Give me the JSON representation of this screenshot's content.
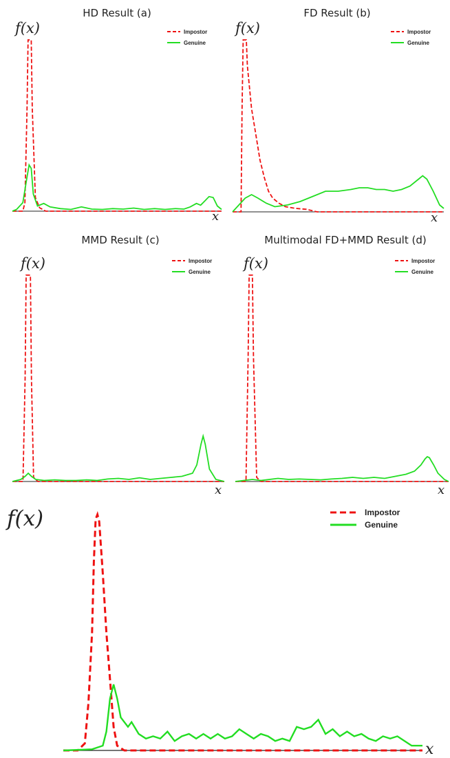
{
  "colors": {
    "impostor": "#ee1111",
    "genuine": "#22dd22",
    "axis": "#222222"
  },
  "legend": {
    "impostor": "Impostor",
    "genuine": "Genuine"
  },
  "chart_data": [
    {
      "type": "line",
      "title": "HD Result (a)",
      "ylabel": "f(x)",
      "xlabel": "x",
      "xlim": [
        0,
        1
      ],
      "ylim": [
        0,
        1
      ],
      "legend_position": "top-right",
      "series": [
        {
          "name": "Impostor",
          "style": "dashed",
          "points": [
            [
              0,
              0
            ],
            [
              0.05,
              0
            ],
            [
              0.06,
              0.05
            ],
            [
              0.07,
              0.6
            ],
            [
              0.075,
              1.0
            ],
            [
              0.09,
              1.0
            ],
            [
              0.095,
              0.6
            ],
            [
              0.11,
              0.08
            ],
            [
              0.13,
              0.02
            ],
            [
              0.16,
              0
            ],
            [
              1,
              0
            ]
          ]
        },
        {
          "name": "Genuine",
          "style": "solid",
          "points": [
            [
              0,
              0
            ],
            [
              0.02,
              0.01
            ],
            [
              0.05,
              0.05
            ],
            [
              0.07,
              0.2
            ],
            [
              0.08,
              0.27
            ],
            [
              0.09,
              0.25
            ],
            [
              0.1,
              0.1
            ],
            [
              0.12,
              0.03
            ],
            [
              0.15,
              0.045
            ],
            [
              0.18,
              0.025
            ],
            [
              0.23,
              0.015
            ],
            [
              0.28,
              0.01
            ],
            [
              0.33,
              0.025
            ],
            [
              0.38,
              0.012
            ],
            [
              0.43,
              0.01
            ],
            [
              0.48,
              0.015
            ],
            [
              0.53,
              0.012
            ],
            [
              0.58,
              0.018
            ],
            [
              0.63,
              0.01
            ],
            [
              0.68,
              0.015
            ],
            [
              0.73,
              0.01
            ],
            [
              0.78,
              0.015
            ],
            [
              0.82,
              0.012
            ],
            [
              0.85,
              0.025
            ],
            [
              0.88,
              0.045
            ],
            [
              0.9,
              0.035
            ],
            [
              0.92,
              0.06
            ],
            [
              0.94,
              0.085
            ],
            [
              0.96,
              0.08
            ],
            [
              0.98,
              0.03
            ],
            [
              1,
              0.01
            ]
          ]
        }
      ]
    },
    {
      "type": "line",
      "title": "FD Result (b)",
      "ylabel": "f(x)",
      "xlabel": "x",
      "xlim": [
        0,
        1
      ],
      "ylim": [
        0,
        1
      ],
      "legend_position": "top-right",
      "series": [
        {
          "name": "Impostor",
          "style": "dashed",
          "points": [
            [
              0,
              0
            ],
            [
              0.04,
              0
            ],
            [
              0.045,
              0.6
            ],
            [
              0.05,
              1.0
            ],
            [
              0.065,
              1.0
            ],
            [
              0.07,
              0.85
            ],
            [
              0.09,
              0.6
            ],
            [
              0.11,
              0.45
            ],
            [
              0.13,
              0.3
            ],
            [
              0.15,
              0.2
            ],
            [
              0.17,
              0.12
            ],
            [
              0.19,
              0.08
            ],
            [
              0.22,
              0.05
            ],
            [
              0.25,
              0.03
            ],
            [
              0.3,
              0.02
            ],
            [
              0.35,
              0.015
            ],
            [
              0.4,
              0
            ],
            [
              1,
              0
            ]
          ]
        },
        {
          "name": "Genuine",
          "style": "solid",
          "points": [
            [
              0,
              0
            ],
            [
              0.03,
              0.04
            ],
            [
              0.06,
              0.08
            ],
            [
              0.09,
              0.1
            ],
            [
              0.12,
              0.08
            ],
            [
              0.16,
              0.05
            ],
            [
              0.2,
              0.03
            ],
            [
              0.26,
              0.04
            ],
            [
              0.32,
              0.06
            ],
            [
              0.38,
              0.09
            ],
            [
              0.44,
              0.12
            ],
            [
              0.5,
              0.12
            ],
            [
              0.56,
              0.13
            ],
            [
              0.6,
              0.14
            ],
            [
              0.64,
              0.14
            ],
            [
              0.68,
              0.13
            ],
            [
              0.72,
              0.13
            ],
            [
              0.76,
              0.12
            ],
            [
              0.8,
              0.13
            ],
            [
              0.84,
              0.15
            ],
            [
              0.88,
              0.19
            ],
            [
              0.9,
              0.21
            ],
            [
              0.92,
              0.19
            ],
            [
              0.95,
              0.12
            ],
            [
              0.98,
              0.04
            ],
            [
              1,
              0.02
            ]
          ]
        }
      ]
    },
    {
      "type": "line",
      "title": "MMD Result (c)",
      "ylabel": "f(x)",
      "xlabel": "x",
      "xlim": [
        0,
        1
      ],
      "ylim": [
        0,
        1
      ],
      "legend_position": "top-right",
      "series": [
        {
          "name": "Impostor",
          "style": "dashed",
          "points": [
            [
              0,
              0
            ],
            [
              0.05,
              0
            ],
            [
              0.06,
              0.5
            ],
            [
              0.065,
              1.0
            ],
            [
              0.085,
              1.0
            ],
            [
              0.09,
              0.5
            ],
            [
              0.1,
              0.02
            ],
            [
              0.12,
              0
            ],
            [
              1,
              0
            ]
          ]
        },
        {
          "name": "Genuine",
          "style": "solid",
          "points": [
            [
              0,
              0
            ],
            [
              0.04,
              0.01
            ],
            [
              0.06,
              0.025
            ],
            [
              0.075,
              0.04
            ],
            [
              0.09,
              0.025
            ],
            [
              0.11,
              0.01
            ],
            [
              0.15,
              0.005
            ],
            [
              0.2,
              0.008
            ],
            [
              0.25,
              0.005
            ],
            [
              0.3,
              0.005
            ],
            [
              0.35,
              0.008
            ],
            [
              0.4,
              0.005
            ],
            [
              0.45,
              0.012
            ],
            [
              0.5,
              0.015
            ],
            [
              0.55,
              0.01
            ],
            [
              0.6,
              0.018
            ],
            [
              0.65,
              0.01
            ],
            [
              0.7,
              0.015
            ],
            [
              0.75,
              0.02
            ],
            [
              0.8,
              0.025
            ],
            [
              0.85,
              0.04
            ],
            [
              0.87,
              0.08
            ],
            [
              0.89,
              0.18
            ],
            [
              0.9,
              0.22
            ],
            [
              0.91,
              0.18
            ],
            [
              0.93,
              0.06
            ],
            [
              0.96,
              0.01
            ],
            [
              1,
              0
            ]
          ]
        }
      ]
    },
    {
      "type": "line",
      "title": "Multimodal FD+MMD Result (d)",
      "ylabel": "f(x)",
      "xlabel": "x",
      "xlim": [
        0,
        1
      ],
      "ylim": [
        0,
        1
      ],
      "legend_position": "top-right",
      "series": [
        {
          "name": "Impostor",
          "style": "dashed",
          "points": [
            [
              0,
              0
            ],
            [
              0.05,
              0
            ],
            [
              0.06,
              0.6
            ],
            [
              0.065,
              1.0
            ],
            [
              0.08,
              1.0
            ],
            [
              0.085,
              0.6
            ],
            [
              0.1,
              0.02
            ],
            [
              0.12,
              0
            ],
            [
              1,
              0
            ]
          ]
        },
        {
          "name": "Genuine",
          "style": "solid",
          "points": [
            [
              0,
              0
            ],
            [
              0.04,
              0.005
            ],
            [
              0.08,
              0.01
            ],
            [
              0.12,
              0.005
            ],
            [
              0.2,
              0.015
            ],
            [
              0.25,
              0.01
            ],
            [
              0.3,
              0.012
            ],
            [
              0.35,
              0.01
            ],
            [
              0.4,
              0.008
            ],
            [
              0.45,
              0.012
            ],
            [
              0.5,
              0.015
            ],
            [
              0.55,
              0.02
            ],
            [
              0.6,
              0.015
            ],
            [
              0.65,
              0.02
            ],
            [
              0.7,
              0.015
            ],
            [
              0.75,
              0.025
            ],
            [
              0.8,
              0.035
            ],
            [
              0.84,
              0.05
            ],
            [
              0.87,
              0.08
            ],
            [
              0.89,
              0.11
            ],
            [
              0.9,
              0.12
            ],
            [
              0.91,
              0.115
            ],
            [
              0.93,
              0.08
            ],
            [
              0.95,
              0.04
            ],
            [
              0.98,
              0.01
            ],
            [
              1,
              0
            ]
          ]
        }
      ]
    },
    {
      "type": "line",
      "title": "",
      "ylabel": "f(x)",
      "xlabel": "x",
      "xlim": [
        0,
        1
      ],
      "ylim": [
        0,
        1
      ],
      "legend_position": "top-right",
      "series": [
        {
          "name": "Impostor",
          "style": "dashed",
          "points": [
            [
              0,
              0
            ],
            [
              0.04,
              0
            ],
            [
              0.06,
              0.03
            ],
            [
              0.07,
              0.2
            ],
            [
              0.08,
              0.5
            ],
            [
              0.085,
              0.8
            ],
            [
              0.09,
              0.98
            ],
            [
              0.095,
              1.0
            ],
            [
              0.1,
              0.97
            ],
            [
              0.11,
              0.75
            ],
            [
              0.12,
              0.5
            ],
            [
              0.13,
              0.3
            ],
            [
              0.14,
              0.1
            ],
            [
              0.15,
              0.02
            ],
            [
              0.17,
              0
            ],
            [
              1,
              0
            ]
          ]
        },
        {
          "name": "Genuine",
          "style": "solid",
          "points": [
            [
              0,
              0
            ],
            [
              0.08,
              0.005
            ],
            [
              0.11,
              0.02
            ],
            [
              0.12,
              0.08
            ],
            [
              0.13,
              0.22
            ],
            [
              0.14,
              0.28
            ],
            [
              0.15,
              0.22
            ],
            [
              0.16,
              0.14
            ],
            [
              0.18,
              0.1
            ],
            [
              0.19,
              0.12
            ],
            [
              0.21,
              0.07
            ],
            [
              0.23,
              0.05
            ],
            [
              0.25,
              0.06
            ],
            [
              0.27,
              0.05
            ],
            [
              0.29,
              0.08
            ],
            [
              0.31,
              0.04
            ],
            [
              0.33,
              0.06
            ],
            [
              0.35,
              0.07
            ],
            [
              0.37,
              0.05
            ],
            [
              0.39,
              0.07
            ],
            [
              0.41,
              0.05
            ],
            [
              0.43,
              0.07
            ],
            [
              0.45,
              0.05
            ],
            [
              0.47,
              0.06
            ],
            [
              0.49,
              0.09
            ],
            [
              0.51,
              0.07
            ],
            [
              0.53,
              0.05
            ],
            [
              0.55,
              0.07
            ],
            [
              0.57,
              0.06
            ],
            [
              0.59,
              0.04
            ],
            [
              0.61,
              0.05
            ],
            [
              0.63,
              0.04
            ],
            [
              0.65,
              0.1
            ],
            [
              0.67,
              0.09
            ],
            [
              0.69,
              0.1
            ],
            [
              0.71,
              0.13
            ],
            [
              0.73,
              0.07
            ],
            [
              0.75,
              0.09
            ],
            [
              0.77,
              0.06
            ],
            [
              0.79,
              0.08
            ],
            [
              0.81,
              0.06
            ],
            [
              0.83,
              0.07
            ],
            [
              0.85,
              0.05
            ],
            [
              0.87,
              0.04
            ],
            [
              0.89,
              0.06
            ],
            [
              0.91,
              0.05
            ],
            [
              0.93,
              0.06
            ],
            [
              0.95,
              0.04
            ],
            [
              0.97,
              0.02
            ],
            [
              1,
              0.02
            ]
          ]
        }
      ]
    }
  ]
}
